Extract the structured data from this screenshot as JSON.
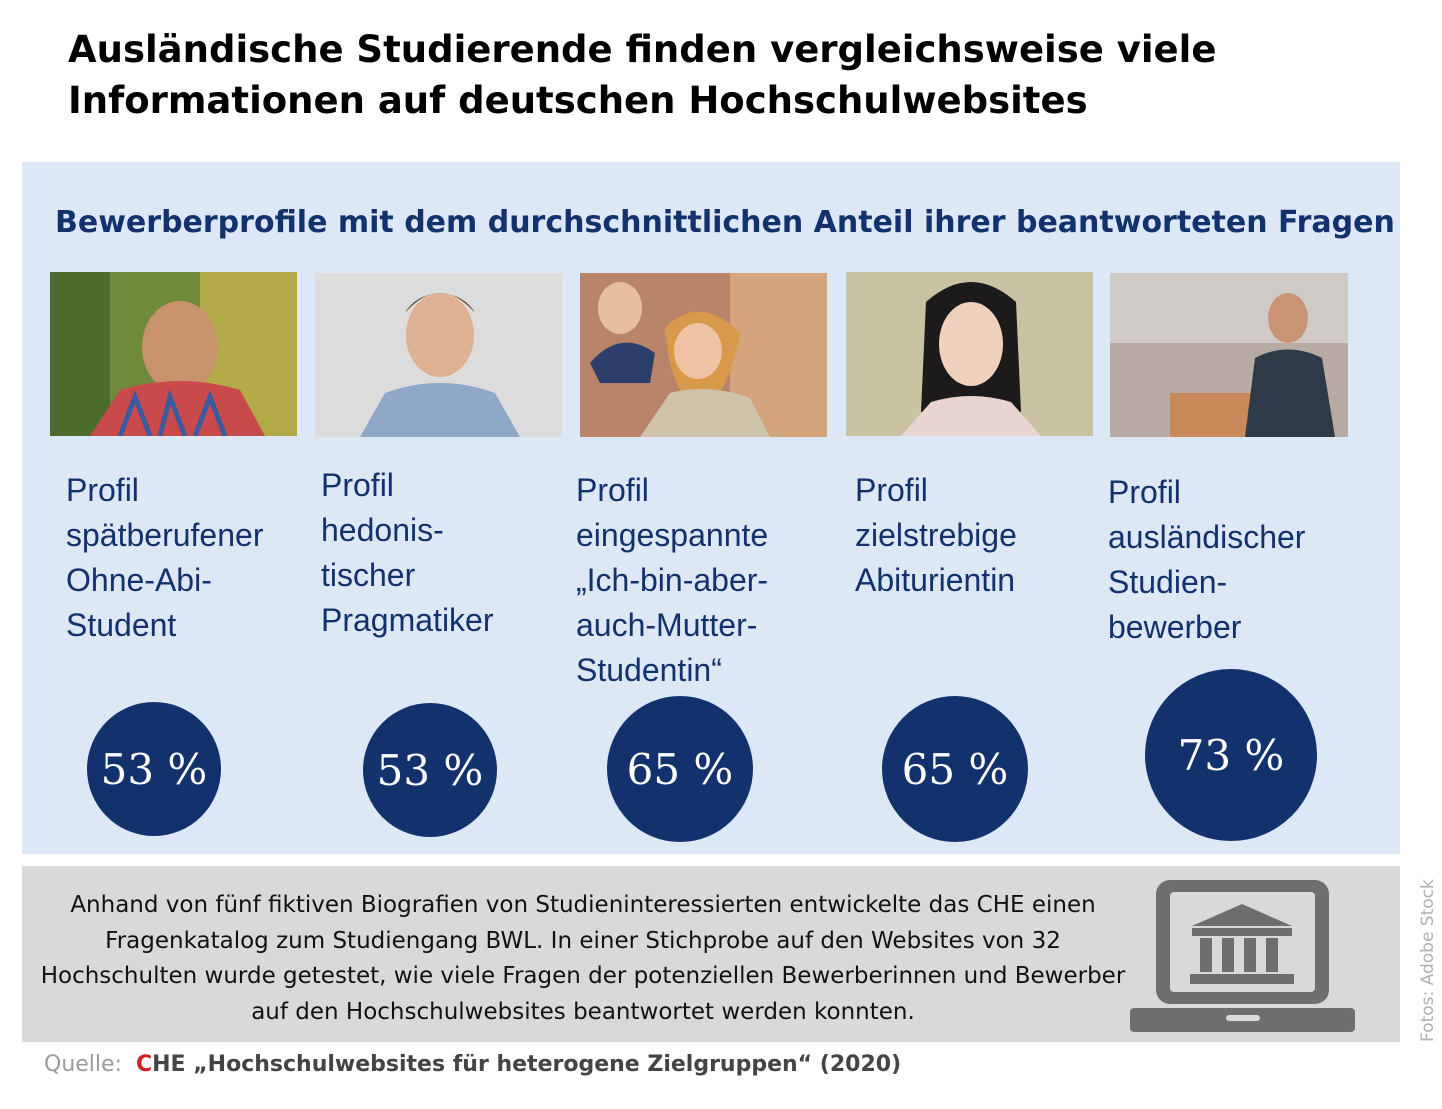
{
  "title": "Ausländische Studierende finden vergleichsweise viele Informationen auf deutschen Hochschulwebsites",
  "subtitle": "Bewerberprofile mit dem durchschnittlichen Anteil ihrer beantworteten Fragen",
  "chart_data": {
    "type": "bar",
    "title": "Bewerberprofile mit dem durchschnittlichen Anteil ihrer beantworteten Fragen",
    "categories": [
      "Profil spätberufener Ohne-Abi-Student",
      "Profil hedonistischer Pragmatiker",
      "Profil eingespannte „Ich-bin-aber-auch-Mutter-Studentin“",
      "Profil zielstrebige Abiturientin",
      "Profil ausländischer Studienbewerber"
    ],
    "values": [
      53,
      53,
      65,
      65,
      73
    ],
    "unit": "%",
    "labels": [
      "53 %",
      "53 %",
      "65 %",
      "65 %",
      "73 %"
    ]
  },
  "profiles": [
    {
      "label": "Profil\nspätberufener\nOhne-Abi-\nStudent",
      "value_label": "53 %"
    },
    {
      "label": "Profil\nhedonis-\ntischer\nPragmatiker",
      "value_label": "53 %"
    },
    {
      "label": "Profil\neingespannte\n„Ich-bin-aber-\nauch-Mutter-\nStudentin“",
      "value_label": "65 %"
    },
    {
      "label": "Profil\nzielstrebige\nAbiturientin",
      "value_label": "65 %"
    },
    {
      "label": "Profil\nausländischer\nStudien-\nbewerber",
      "value_label": "73 %"
    }
  ],
  "info_text": "Anhand von fünf fiktiven Biografien von Studieninteressierten entwickelte das CHE einen Fragenkatalog zum Studiengang BWL. In einer Stichprobe auf den Websites von 32 Hochschulten wurde getestet, wie viele Fragen der potenziellen Bewerberinnen und Bewerber auf den Hochschulwebsites beantwortet werden konnten.",
  "photo_credit": "Fotos: Adobe Stock",
  "source": {
    "prefix": "Quelle:",
    "brand_c": "C",
    "rest": "HE „Hochschulwebsites für heterogene Zielgruppen“ (2020)"
  },
  "colors": {
    "navy": "#13316d",
    "panel": "#dce8f5",
    "info_bg": "#d9d9d9",
    "laptop": "#6e6e6e",
    "brand_red": "#d21f1f"
  }
}
